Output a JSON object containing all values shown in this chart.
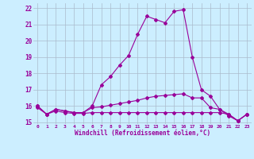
{
  "xlabel": "Windchill (Refroidissement éolien,°C)",
  "bg_color": "#cceeff",
  "line_color": "#990099",
  "grid_color": "#aabbcc",
  "x": [
    0,
    1,
    2,
    3,
    4,
    5,
    6,
    7,
    8,
    9,
    10,
    11,
    12,
    13,
    14,
    15,
    16,
    17,
    18,
    19,
    20,
    21,
    22,
    23
  ],
  "line1": [
    16.0,
    15.5,
    15.8,
    15.7,
    15.6,
    15.6,
    16.0,
    17.3,
    17.8,
    18.5,
    19.1,
    20.4,
    21.5,
    21.3,
    21.1,
    21.8,
    21.9,
    19.0,
    17.0,
    16.6,
    15.8,
    15.4,
    15.1,
    15.5
  ],
  "line2": [
    16.0,
    15.5,
    15.8,
    15.7,
    15.6,
    15.6,
    15.9,
    15.95,
    16.05,
    16.15,
    16.25,
    16.35,
    16.5,
    16.6,
    16.65,
    16.7,
    16.75,
    16.5,
    16.5,
    15.9,
    15.8,
    15.5,
    15.1,
    15.5
  ],
  "line3": [
    15.9,
    15.5,
    15.7,
    15.6,
    15.55,
    15.55,
    15.6,
    15.6,
    15.6,
    15.6,
    15.6,
    15.6,
    15.6,
    15.6,
    15.6,
    15.6,
    15.6,
    15.6,
    15.6,
    15.6,
    15.6,
    15.5,
    15.1,
    15.5
  ],
  "ylim": [
    14.9,
    22.3
  ],
  "yticks": [
    15,
    16,
    17,
    18,
    19,
    20,
    21,
    22
  ],
  "xlim": [
    -0.5,
    23.5
  ]
}
